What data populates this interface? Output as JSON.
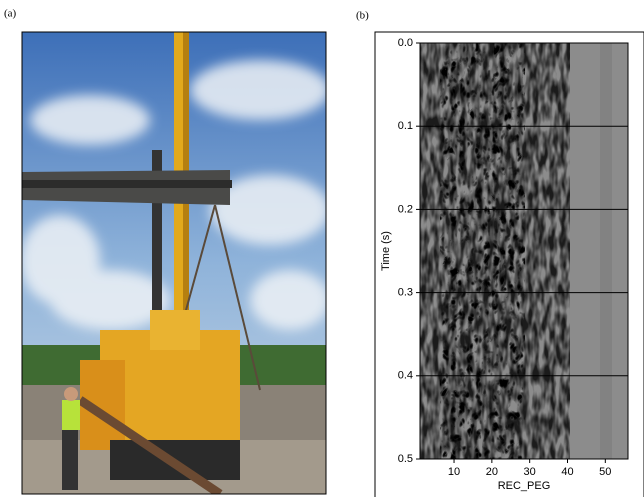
{
  "panel_labels": [
    "(a)",
    "(b)"
  ],
  "chart_data": {
    "type": "seismic",
    "xlabel": "REC_PEG",
    "ylabel": "Time (s)",
    "xlim": [
      1,
      56
    ],
    "xticks": [
      10,
      20,
      30,
      40,
      50
    ],
    "ylim": [
      0,
      0.5
    ],
    "y_inverted": true,
    "yticks": [
      {
        "value": 0,
        "label": "0.0"
      },
      0.1,
      0.2,
      0.3,
      0.4,
      0.5
    ],
    "grid": true
  }
}
